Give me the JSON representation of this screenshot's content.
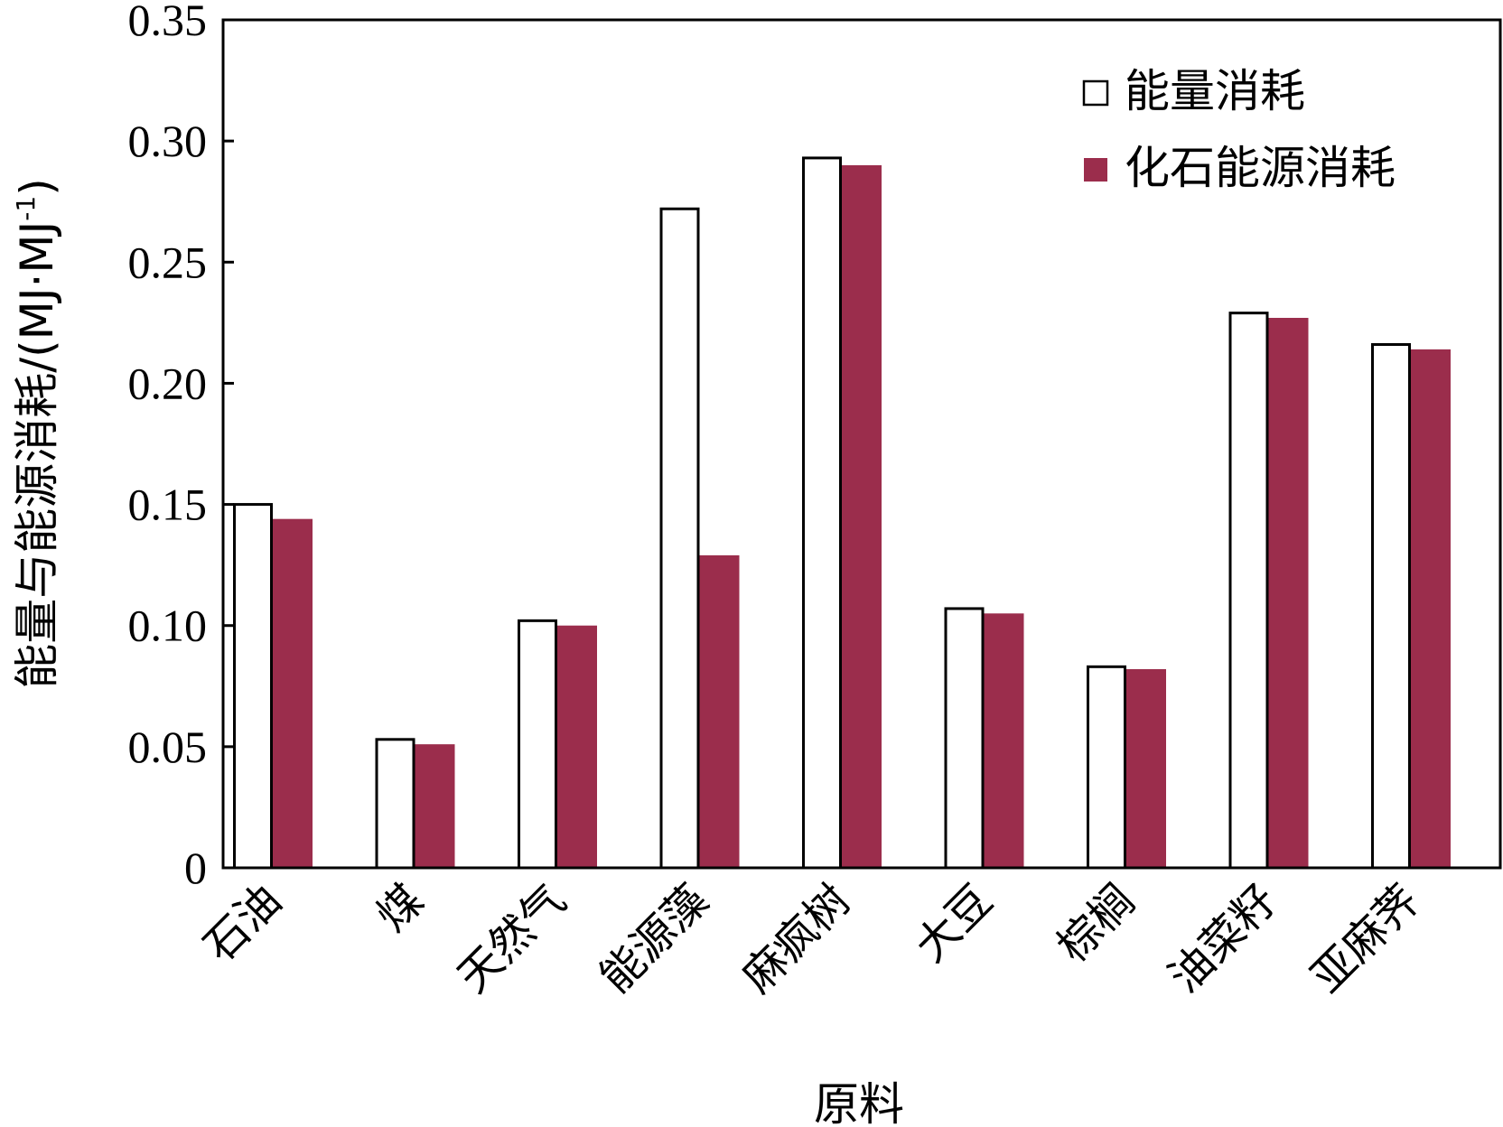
{
  "chart_data": {
    "type": "bar",
    "title": "",
    "xlabel": "原料",
    "ylabel": "能量与能源消耗/(MJ·MJ",
    "ylabel_sup": "-1",
    "ylabel_close": ")",
    "ylim": [
      0,
      0.35
    ],
    "yticks": [
      0,
      0.05,
      0.1,
      0.15,
      0.2,
      0.25,
      0.3,
      0.35
    ],
    "ytick_labels": [
      "0",
      "0.05",
      "0.10",
      "0.15",
      "0.20",
      "0.25",
      "0.30",
      "0.35"
    ],
    "categories": [
      "石油",
      "煤",
      "天然气",
      "能源藻",
      "麻疯树",
      "大豆",
      "棕榈",
      "油菜籽",
      "亚麻荠"
    ],
    "series": [
      {
        "name": "能量消耗",
        "values": [
          0.15,
          0.053,
          0.102,
          0.272,
          0.293,
          0.107,
          0.083,
          0.229,
          0.216
        ],
        "fill": "#ffffff",
        "stroke": "#000000"
      },
      {
        "name": "化石能源消耗",
        "values": [
          0.144,
          0.051,
          0.1,
          0.129,
          0.29,
          0.105,
          0.082,
          0.227,
          0.214
        ],
        "fill": "#9b2d4c",
        "stroke": "#9b2d4c"
      }
    ],
    "legend_position": "top-right",
    "grid": false
  }
}
